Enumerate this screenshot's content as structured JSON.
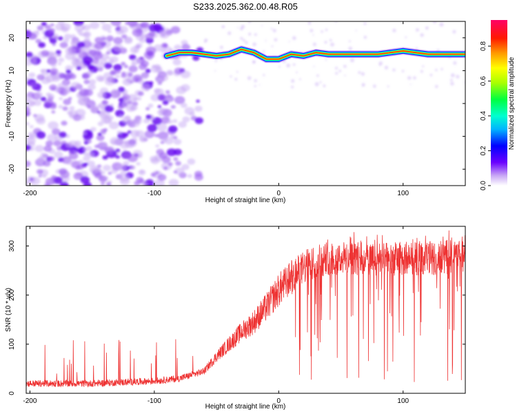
{
  "title": "S233.2025.362.00.48.R05",
  "chart_data": [
    {
      "type": "heatmap",
      "name": "spectrogram",
      "xlabel": "Height of straight line (km)",
      "ylabel": "Frequency (Hz)",
      "xlim": [
        -203,
        150
      ],
      "ylim": [
        -25,
        25
      ],
      "xticks": [
        -200,
        -100,
        0,
        100
      ],
      "xtick_labels": [
        "-200",
        "-100",
        "0",
        "100"
      ],
      "yticks": [
        -20,
        -10,
        0,
        10,
        20
      ],
      "ytick_labels": [
        "-20",
        "-10",
        "0",
        "10",
        "20"
      ],
      "colorbar": {
        "label": "Normalized spectral amplitude",
        "range": [
          0,
          0.95
        ],
        "ticks": [
          0.0,
          0.2,
          0.4,
          0.6,
          0.8
        ],
        "tick_labels": [
          "0.0",
          "0.2",
          "0.4",
          "0.6",
          "0.8"
        ]
      },
      "noise_region_x": [
        -203,
        -65
      ],
      "signal_ridge": {
        "x": [
          -90,
          -80,
          -70,
          -60,
          -50,
          -40,
          -30,
          -20,
          -10,
          0,
          10,
          20,
          30,
          40,
          60,
          80,
          100,
          120,
          150
        ],
        "frequency_hz": [
          14.5,
          15.5,
          15.5,
          15,
          14.5,
          15,
          16.5,
          15.5,
          13.5,
          13.5,
          15,
          14.5,
          15.5,
          15,
          15,
          15,
          16,
          15,
          15
        ]
      }
    },
    {
      "type": "line",
      "name": "snr",
      "xlabel": "Height of straight line (km)",
      "ylabel": "SNR (10 * v/v)",
      "xlim": [
        -203,
        150
      ],
      "ylim": [
        0,
        340
      ],
      "xticks": [
        -200,
        -100,
        0,
        100
      ],
      "xtick_labels": [
        "-200",
        "-100",
        "0",
        "100"
      ],
      "yticks": [
        0,
        100,
        200,
        300
      ],
      "ytick_labels": [
        "0",
        "100",
        "200",
        "300"
      ],
      "color": "#ee3333",
      "trend": {
        "x": [
          -203,
          -150,
          -100,
          -80,
          -60,
          -50,
          -40,
          -30,
          -20,
          -10,
          0,
          10,
          20,
          30,
          40,
          60,
          80,
          100,
          120,
          150
        ],
        "y": [
          20,
          20,
          25,
          30,
          45,
          75,
          100,
          125,
          145,
          175,
          210,
          235,
          255,
          270,
          275,
          275,
          270,
          275,
          275,
          280
        ]
      }
    }
  ]
}
